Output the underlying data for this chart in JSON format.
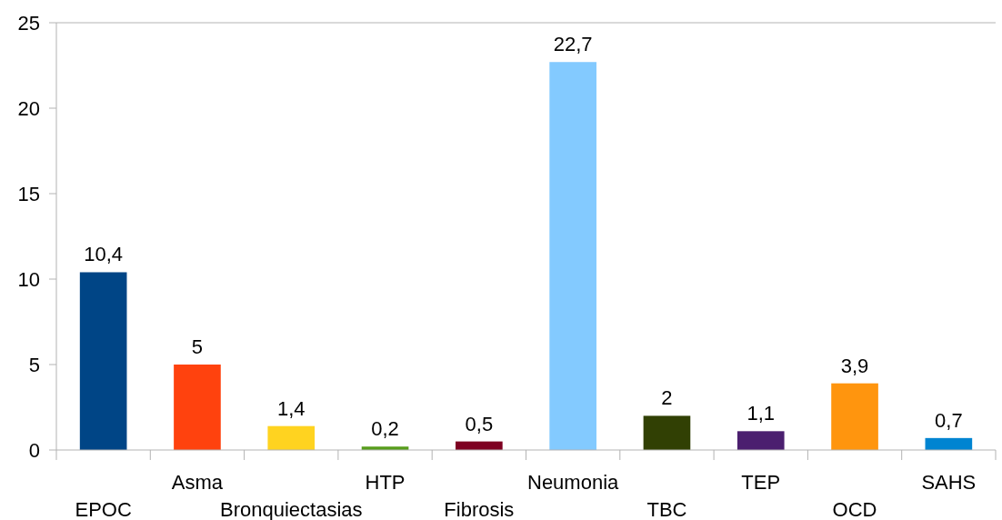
{
  "chart_data": {
    "type": "bar",
    "categories": [
      "EPOC",
      "Asma",
      "Bronquiectasias",
      "HTP",
      "Fibrosis",
      "Neumonia",
      "TBC",
      "TEP",
      "OCD",
      "SAHS"
    ],
    "values": [
      10.4,
      5,
      1.4,
      0.2,
      0.5,
      22.7,
      2,
      1.1,
      3.9,
      0.7
    ],
    "colors": [
      "#004586",
      "#ff420e",
      "#ffd320",
      "#579d1c",
      "#7e0021",
      "#83caff",
      "#314004",
      "#4b1f6f",
      "#ff950e",
      "#0084d1"
    ],
    "value_labels": [
      "10,4",
      "5",
      "1,4",
      "0,2",
      "0,5",
      "22,7",
      "2",
      "1,1",
      "3,9",
      "0,7"
    ],
    "ylim": [
      0,
      25
    ],
    "yticks": [
      0,
      5,
      10,
      15,
      20,
      25
    ]
  }
}
